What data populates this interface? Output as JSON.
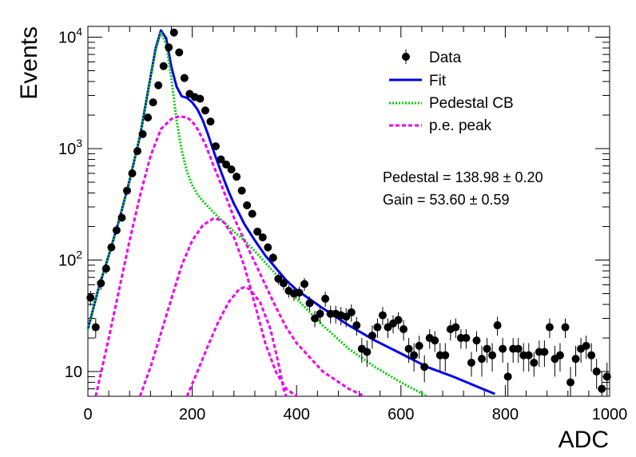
{
  "chart_data": {
    "type": "scatter",
    "title": "",
    "xlabel": "ADC",
    "ylabel": "Events",
    "xlim": [
      0,
      1000
    ],
    "ylim": [
      6,
      12500
    ],
    "ylog": true,
    "x_ticks": [
      "0",
      "200",
      "400",
      "600",
      "800",
      "1000"
    ],
    "x_tick_values": [
      0,
      200,
      400,
      600,
      800,
      1000
    ],
    "y_ticks": [
      {
        "value": 10,
        "base": "10",
        "exp": ""
      },
      {
        "value": 100,
        "base": "10",
        "exp": "2"
      },
      {
        "value": 1000,
        "base": "10",
        "exp": "3"
      },
      {
        "value": 10000,
        "base": "10",
        "exp": "4"
      }
    ],
    "legend": {
      "placement": "top-right",
      "entries": [
        {
          "label": "Data",
          "style": "marker",
          "color": "#000000"
        },
        {
          "label": "Fit",
          "style": "solid",
          "color": "#0000ee"
        },
        {
          "label": "Pedestal CB",
          "style": "dotted",
          "color": "#00cc00"
        },
        {
          "label": "p.e. peak",
          "style": "dashed",
          "color": "#ee00ee"
        }
      ]
    },
    "annotations": [
      {
        "label": "Pedestal = 138.98",
        "pm": "±",
        "value": "0.20"
      },
      {
        "label": "Gain = 53.60",
        "pm": "±",
        "value": "0.59"
      }
    ],
    "series": [
      {
        "name": "Data",
        "type": "scatter",
        "color": "#000000",
        "x": [
          5,
          15,
          25,
          35,
          45,
          55,
          65,
          75,
          85,
          95,
          105,
          115,
          125,
          135,
          145,
          155,
          165,
          175,
          185,
          195,
          205,
          215,
          225,
          235,
          245,
          255,
          265,
          275,
          285,
          295,
          305,
          315,
          325,
          335,
          345,
          355,
          365,
          375,
          385,
          395,
          405,
          415,
          425,
          435,
          445,
          455,
          465,
          475,
          485,
          495,
          505,
          515,
          525,
          535,
          545,
          555,
          565,
          575,
          585,
          595,
          605,
          615,
          625,
          635,
          645,
          655,
          665,
          675,
          685,
          695,
          705,
          715,
          725,
          735,
          745,
          755,
          765,
          775,
          785,
          795,
          805,
          815,
          825,
          835,
          845,
          855,
          865,
          875,
          885,
          895,
          905,
          915,
          925,
          935,
          945,
          955,
          965,
          975,
          985,
          995
        ],
        "y": [
          46,
          25,
          62,
          84,
          130,
          185,
          240,
          420,
          600,
          950,
          1350,
          1900,
          2600,
          3700,
          5500,
          8100,
          11000,
          7300,
          4300,
          3100,
          2900,
          2800,
          2200,
          1750,
          1050,
          800,
          720,
          650,
          560,
          420,
          310,
          260,
          180,
          160,
          130,
          105,
          68,
          62,
          53,
          50,
          51,
          61,
          41,
          30,
          33,
          45,
          33,
          33,
          32,
          31,
          34,
          26,
          16,
          15,
          21,
          25,
          32,
          25,
          27,
          29,
          24,
          16,
          14,
          17,
          11,
          20,
          19,
          14,
          14,
          24,
          25,
          20,
          20,
          12,
          19,
          13,
          16,
          14,
          26,
          16,
          9,
          16,
          16,
          14,
          14,
          12,
          15,
          15,
          25,
          13,
          14,
          25,
          8,
          13,
          16,
          17,
          14,
          10,
          7,
          9
        ],
        "yerr": [
          7,
          5,
          8,
          9,
          11,
          14,
          15,
          20,
          25,
          31,
          37,
          44,
          51,
          61,
          74,
          90,
          105,
          85,
          66,
          56,
          54,
          53,
          47,
          42,
          32,
          28,
          27,
          25,
          24,
          20,
          18,
          16,
          13,
          13,
          11,
          10,
          8,
          8,
          7,
          7,
          7,
          8,
          6,
          5,
          6,
          7,
          6,
          6,
          6,
          6,
          6,
          5,
          4,
          4,
          5,
          5,
          6,
          5,
          5,
          5,
          5,
          4,
          4,
          4,
          3,
          4,
          4,
          4,
          4,
          5,
          5,
          4,
          4,
          3,
          4,
          4,
          4,
          4,
          5,
          4,
          3,
          4,
          4,
          4,
          4,
          3,
          4,
          4,
          5,
          4,
          4,
          5,
          3,
          4,
          4,
          4,
          4,
          3,
          3,
          3
        ]
      },
      {
        "name": "Fit",
        "type": "line",
        "style": "solid",
        "color": "#0000ee",
        "x": [
          0,
          20,
          40,
          60,
          80,
          100,
          120,
          130,
          140,
          150,
          160,
          170,
          180,
          190,
          200,
          210,
          220,
          230,
          240,
          250,
          260,
          270,
          280,
          290,
          300,
          320,
          340,
          360,
          380,
          400,
          450,
          500,
          550,
          600,
          650,
          700,
          750,
          780
        ],
        "y": [
          24,
          55,
          110,
          230,
          520,
          1300,
          4400,
          8000,
          11500,
          9800,
          5400,
          3600,
          2950,
          2850,
          2600,
          2250,
          1800,
          1350,
          980,
          720,
          540,
          410,
          320,
          260,
          210,
          150,
          110,
          85,
          66,
          54,
          37,
          26,
          19,
          14.5,
          11,
          9,
          7.2,
          6.3
        ]
      },
      {
        "name": "Pedestal CB",
        "type": "line",
        "style": "dotted",
        "color": "#00cc00",
        "x": [
          0,
          20,
          40,
          60,
          80,
          100,
          120,
          130,
          140,
          150,
          160,
          170,
          180,
          190,
          200,
          210,
          220,
          240,
          260,
          280,
          300,
          320,
          340,
          360,
          380,
          400,
          450,
          500,
          550,
          600,
          650
        ],
        "y": [
          24,
          55,
          110,
          230,
          520,
          1300,
          4400,
          7700,
          11200,
          8600,
          4200,
          1800,
          950,
          620,
          470,
          390,
          340,
          270,
          220,
          180,
          150,
          120,
          95,
          75,
          58,
          45,
          26,
          16,
          11,
          8,
          6
        ]
      },
      {
        "name": "p.e. peak",
        "type": "line",
        "style": "dashed",
        "color": "#ee00ee",
        "x": [
          15,
          40,
          60,
          80,
          100,
          120,
          140,
          160,
          175,
          190,
          200,
          210,
          225,
          240,
          260,
          280,
          300,
          320,
          340,
          360,
          380,
          400,
          450,
          500,
          530
        ],
        "y": [
          6,
          20,
          55,
          150,
          380,
          860,
          1500,
          1850,
          1950,
          1900,
          1750,
          1500,
          1100,
          720,
          420,
          240,
          150,
          95,
          60,
          38,
          25,
          18,
          10,
          7,
          6
        ]
      },
      {
        "name": "p.e. peak",
        "type": "line",
        "style": "dashed",
        "color": "#ee00ee",
        "x": [
          100,
          120,
          140,
          160,
          180,
          200,
          220,
          240,
          250,
          260,
          280,
          300,
          320,
          340,
          360,
          380,
          400
        ],
        "y": [
          6,
          11,
          22,
          45,
          90,
          150,
          205,
          235,
          232,
          220,
          160,
          88,
          40,
          18,
          10,
          7,
          6
        ]
      },
      {
        "name": "p.e. peak",
        "type": "line",
        "style": "dashed",
        "color": "#ee00ee",
        "x": [
          190,
          210,
          230,
          250,
          270,
          290,
          300,
          310,
          330,
          350,
          365,
          375,
          380
        ],
        "y": [
          6,
          10,
          17,
          28,
          42,
          55,
          57,
          55,
          42,
          24,
          12,
          7,
          6
        ]
      }
    ]
  }
}
